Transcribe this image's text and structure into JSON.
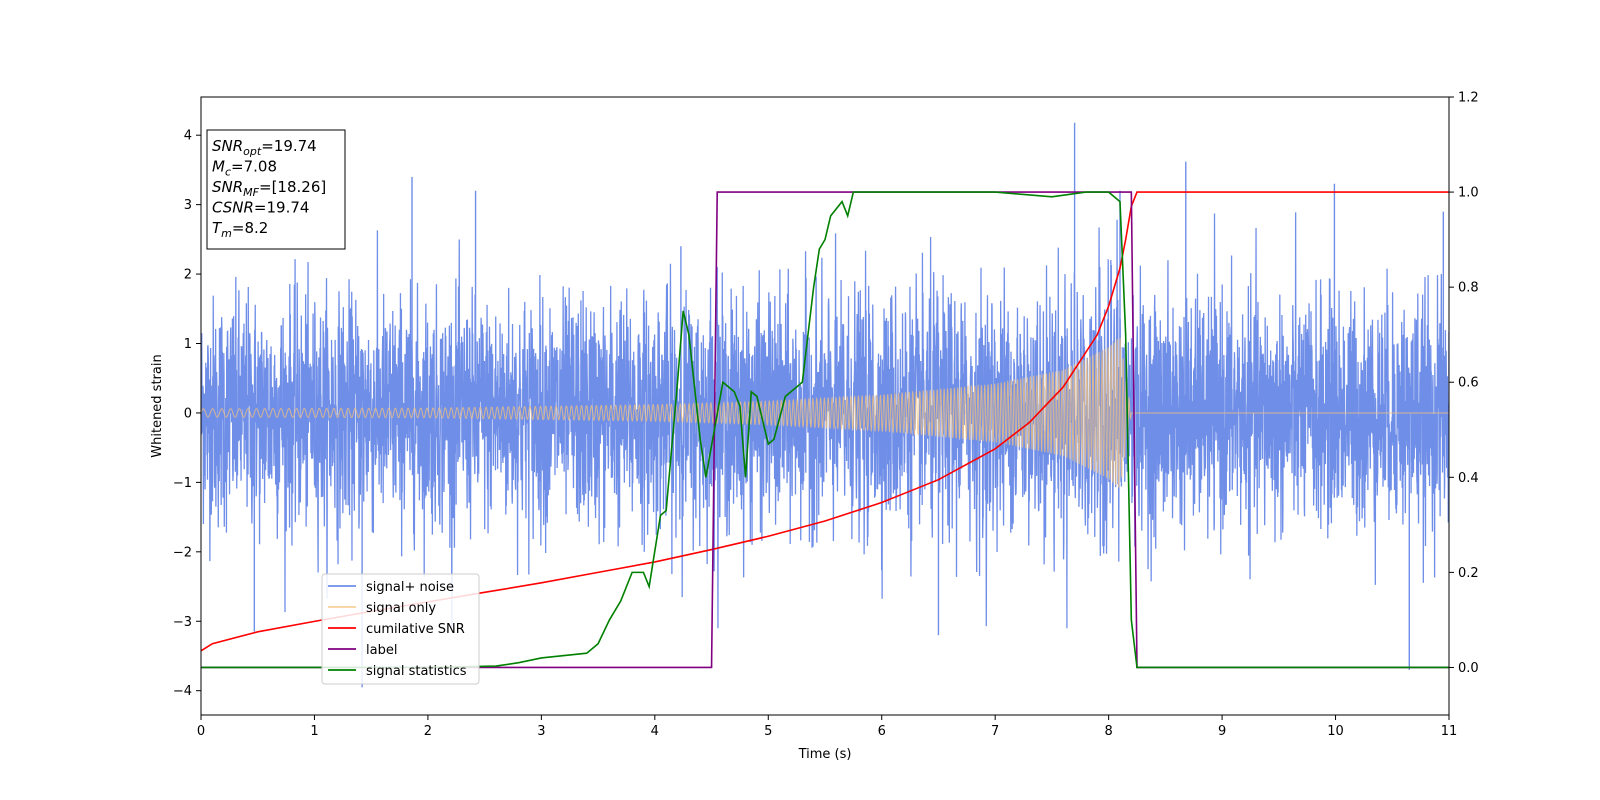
{
  "chart_data": {
    "type": "line",
    "xlabel": "Time (s)",
    "ylabel": "Whitened strain",
    "xlim": [
      0,
      11
    ],
    "ylim_left": [
      -4.35,
      4.55
    ],
    "ylim_right": [
      -0.1,
      1.2
    ],
    "x_ticks": [
      0,
      1,
      2,
      3,
      4,
      5,
      6,
      7,
      8,
      9,
      10,
      11
    ],
    "y_ticks_left": [
      -4,
      -3,
      -2,
      -1,
      0,
      1,
      2,
      3,
      4
    ],
    "y_ticks_right": [
      "0.0",
      "0.2",
      "0.4",
      "0.6",
      "0.8",
      "1.0",
      "1.2"
    ],
    "legend_position": "bottom-left",
    "annotation": {
      "lines": [
        {
          "base": "SNR",
          "sub": "opt",
          "value": "=19.74"
        },
        {
          "base": "M",
          "sub": "c",
          "value": "=7.08"
        },
        {
          "base": "SNR",
          "sub": "MF",
          "value": "=[18.26]"
        },
        {
          "base": "CSNR",
          "sub": "",
          "value": "=19.74"
        },
        {
          "base": "T",
          "sub": "m",
          "value": "=8.2"
        }
      ]
    },
    "series": [
      {
        "name": "signal+ noise",
        "axis": "left",
        "color": "#6f8ee8",
        "kind": "noise",
        "x_range": [
          0,
          11
        ],
        "typical_amplitude": 1.3,
        "peaks": [
          [
            0.47,
            -3.15
          ],
          [
            1.42,
            -3.95
          ],
          [
            1.86,
            3.4
          ],
          [
            2.42,
            3.2
          ],
          [
            4.23,
            2.4
          ],
          [
            4.55,
            2.1
          ],
          [
            6.5,
            -3.2
          ],
          [
            7.7,
            4.18
          ],
          [
            8.1,
            3.2
          ],
          [
            8.68,
            3.62
          ],
          [
            9.99,
            3.3
          ],
          [
            10.65,
            -3.7
          ],
          [
            10.95,
            2.9
          ]
        ]
      },
      {
        "name": "signal only",
        "axis": "left",
        "color": "#f5c27a",
        "kind": "chirp",
        "x_range": [
          0,
          8.2
        ],
        "envelope": [
          [
            0,
            0.06
          ],
          [
            2,
            0.07
          ],
          [
            4,
            0.12
          ],
          [
            5,
            0.17
          ],
          [
            6,
            0.26
          ],
          [
            7,
            0.42
          ],
          [
            7.6,
            0.62
          ],
          [
            8.0,
            0.95
          ],
          [
            8.1,
            1.1
          ],
          [
            8.2,
            0.0
          ]
        ],
        "after_merger_value": 0,
        "after_range": [
          8.2,
          11
        ]
      },
      {
        "name": "cumilative SNR",
        "axis": "right",
        "color": "#ff0000",
        "kind": "line",
        "x": [
          0,
          0.1,
          0.5,
          1,
          1.5,
          2,
          2.5,
          3,
          3.5,
          4,
          4.5,
          5,
          5.5,
          6,
          6.5,
          7,
          7.3,
          7.6,
          7.9,
          8.0,
          8.1,
          8.15,
          8.2,
          8.25,
          9,
          10,
          11
        ],
        "y": [
          0.035,
          0.05,
          0.075,
          0.097,
          0.118,
          0.138,
          0.158,
          0.178,
          0.2,
          0.222,
          0.248,
          0.276,
          0.308,
          0.347,
          0.395,
          0.46,
          0.515,
          0.59,
          0.7,
          0.76,
          0.84,
          0.9,
          0.97,
          1.0,
          1.0,
          1.0,
          1.0
        ]
      },
      {
        "name": "label",
        "axis": "right",
        "color": "#800080",
        "kind": "line",
        "x": [
          0,
          4.5,
          4.55,
          8.2,
          8.25,
          11
        ],
        "y": [
          0,
          0,
          1,
          1,
          0,
          0
        ]
      },
      {
        "name": "signal statistics",
        "axis": "right",
        "color": "#008000",
        "kind": "line",
        "x": [
          0,
          1.0,
          2.0,
          2.6,
          2.8,
          3.0,
          3.2,
          3.4,
          3.5,
          3.6,
          3.7,
          3.8,
          3.9,
          3.95,
          4.05,
          4.1,
          4.2,
          4.25,
          4.3,
          4.4,
          4.45,
          4.6,
          4.7,
          4.75,
          4.8,
          4.85,
          4.9,
          5.0,
          5.05,
          5.15,
          5.2,
          5.3,
          5.35,
          5.4,
          5.45,
          5.5,
          5.55,
          5.65,
          5.7,
          5.75,
          5.85,
          6.0,
          6.5,
          7.0,
          7.5,
          7.8,
          8.0,
          8.1,
          8.15,
          8.2,
          8.25,
          9,
          10,
          11
        ],
        "y": [
          0,
          0,
          0,
          0.003,
          0.01,
          0.02,
          0.025,
          0.03,
          0.05,
          0.1,
          0.14,
          0.2,
          0.2,
          0.17,
          0.32,
          0.33,
          0.6,
          0.75,
          0.7,
          0.48,
          0.4,
          0.6,
          0.58,
          0.55,
          0.4,
          0.58,
          0.57,
          0.47,
          0.48,
          0.57,
          0.58,
          0.6,
          0.7,
          0.8,
          0.88,
          0.9,
          0.95,
          0.98,
          0.95,
          1.0,
          1.0,
          1.0,
          1.0,
          1.0,
          0.99,
          1.0,
          1.0,
          0.98,
          0.7,
          0.1,
          0.0,
          0.0,
          0.0,
          0.0
        ]
      }
    ]
  }
}
